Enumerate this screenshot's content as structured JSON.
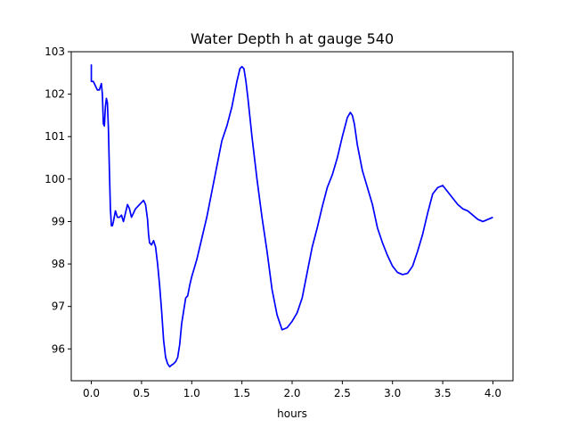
{
  "chart_data": {
    "type": "line",
    "title": "Water Depth h at gauge 540",
    "xlabel": "hours",
    "ylabel": "",
    "xlim": [
      -0.2,
      4.2
    ],
    "ylim": [
      95.25,
      103.0
    ],
    "x_ticks": [
      "0.0",
      "0.5",
      "1.0",
      "1.5",
      "2.0",
      "2.5",
      "3.0",
      "3.5",
      "4.0"
    ],
    "y_ticks": [
      "96",
      "97",
      "98",
      "99",
      "100",
      "101",
      "102",
      "103"
    ],
    "grid": false,
    "legend": "none",
    "series": [
      {
        "color": "#0000ff",
        "x": [
          0.0,
          0.0,
          0.02,
          0.04,
          0.06,
          0.08,
          0.1,
          0.11,
          0.12,
          0.13,
          0.14,
          0.15,
          0.16,
          0.17,
          0.18,
          0.19,
          0.2,
          0.21,
          0.22,
          0.24,
          0.26,
          0.28,
          0.3,
          0.32,
          0.34,
          0.36,
          0.38,
          0.4,
          0.42,
          0.44,
          0.46,
          0.48,
          0.5,
          0.52,
          0.54,
          0.56,
          0.57,
          0.58,
          0.6,
          0.62,
          0.64,
          0.66,
          0.68,
          0.7,
          0.72,
          0.74,
          0.76,
          0.78,
          0.8,
          0.82,
          0.84,
          0.86,
          0.88,
          0.9,
          0.92,
          0.94,
          0.96,
          0.98,
          1.0,
          1.05,
          1.1,
          1.15,
          1.2,
          1.25,
          1.3,
          1.35,
          1.4,
          1.45,
          1.48,
          1.5,
          1.52,
          1.54,
          1.56,
          1.6,
          1.65,
          1.7,
          1.75,
          1.8,
          1.85,
          1.9,
          1.95,
          2.0,
          2.05,
          2.1,
          2.15,
          2.2,
          2.25,
          2.3,
          2.35,
          2.4,
          2.45,
          2.5,
          2.55,
          2.58,
          2.6,
          2.62,
          2.65,
          2.7,
          2.75,
          2.8,
          2.85,
          2.9,
          2.95,
          3.0,
          3.05,
          3.1,
          3.15,
          3.2,
          3.25,
          3.3,
          3.35,
          3.4,
          3.45,
          3.5,
          3.55,
          3.6,
          3.65,
          3.7,
          3.75,
          3.8,
          3.85,
          3.9,
          3.95,
          4.0
        ],
        "y": [
          102.7,
          102.3,
          102.3,
          102.2,
          102.1,
          102.1,
          102.25,
          102.0,
          101.3,
          101.25,
          101.7,
          101.9,
          101.8,
          101.2,
          100.2,
          99.3,
          98.9,
          98.9,
          99.0,
          99.25,
          99.1,
          99.1,
          99.15,
          99.0,
          99.2,
          99.4,
          99.3,
          99.1,
          99.2,
          99.3,
          99.35,
          99.4,
          99.45,
          99.5,
          99.4,
          99.05,
          98.7,
          98.5,
          98.45,
          98.55,
          98.4,
          98.0,
          97.5,
          96.9,
          96.2,
          95.8,
          95.65,
          95.58,
          95.62,
          95.65,
          95.7,
          95.8,
          96.1,
          96.6,
          96.9,
          97.2,
          97.25,
          97.5,
          97.7,
          98.1,
          98.6,
          99.1,
          99.7,
          100.3,
          100.9,
          101.25,
          101.7,
          102.3,
          102.6,
          102.65,
          102.6,
          102.3,
          101.9,
          101.0,
          100.0,
          99.1,
          98.3,
          97.4,
          96.8,
          96.45,
          96.5,
          96.65,
          96.85,
          97.2,
          97.8,
          98.4,
          98.85,
          99.35,
          99.8,
          100.1,
          100.5,
          101.0,
          101.45,
          101.57,
          101.5,
          101.3,
          100.8,
          100.2,
          99.8,
          99.4,
          98.85,
          98.5,
          98.2,
          97.95,
          97.8,
          97.75,
          97.78,
          97.95,
          98.3,
          98.7,
          99.2,
          99.65,
          99.8,
          99.85,
          99.7,
          99.55,
          99.4,
          99.3,
          99.25,
          99.15,
          99.05,
          99.0,
          99.05,
          99.1
        ]
      }
    ]
  }
}
